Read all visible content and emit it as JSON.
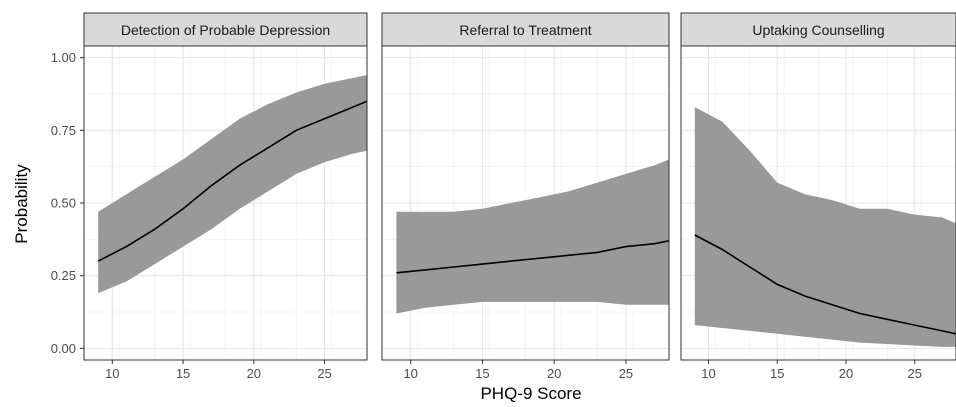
{
  "chart_data": {
    "type": "area",
    "layout": "facets",
    "xlabel": "PHQ-9 Score",
    "ylabel": "Probability",
    "xlim": [
      8,
      28
    ],
    "ylim": [
      -0.04,
      1.04
    ],
    "xticks": [
      10,
      15,
      20,
      25
    ],
    "yticks": [
      0.0,
      0.25,
      0.5,
      0.75,
      1.0
    ],
    "ytick_labels": [
      "0.00",
      "0.25",
      "0.50",
      "0.75",
      "1.00"
    ],
    "grid": true,
    "line_color": "#000000",
    "ribbon_color": "#999999",
    "strip_fill": "#d9d9d9",
    "panels": [
      {
        "title": "Detection of Probable Depression",
        "x": [
          9,
          11,
          13,
          15,
          17,
          19,
          21,
          23,
          25,
          27,
          28
        ],
        "y": [
          0.3,
          0.35,
          0.41,
          0.48,
          0.56,
          0.63,
          0.69,
          0.75,
          0.79,
          0.83,
          0.85
        ],
        "lower": [
          0.19,
          0.23,
          0.29,
          0.35,
          0.41,
          0.48,
          0.54,
          0.6,
          0.64,
          0.67,
          0.68
        ],
        "upper": [
          0.47,
          0.53,
          0.59,
          0.65,
          0.72,
          0.79,
          0.84,
          0.88,
          0.91,
          0.93,
          0.94
        ]
      },
      {
        "title": "Referral to Treatment",
        "x": [
          9,
          11,
          13,
          15,
          17,
          19,
          21,
          23,
          25,
          27,
          28
        ],
        "y": [
          0.26,
          0.27,
          0.28,
          0.29,
          0.3,
          0.31,
          0.32,
          0.33,
          0.35,
          0.36,
          0.37
        ],
        "lower": [
          0.12,
          0.14,
          0.15,
          0.16,
          0.16,
          0.16,
          0.16,
          0.16,
          0.15,
          0.15,
          0.15
        ],
        "upper": [
          0.47,
          0.47,
          0.47,
          0.48,
          0.5,
          0.52,
          0.54,
          0.57,
          0.6,
          0.63,
          0.65
        ]
      },
      {
        "title": "Uptaking Counselling",
        "x": [
          9,
          11,
          13,
          15,
          17,
          19,
          21,
          23,
          25,
          27,
          28
        ],
        "y": [
          0.39,
          0.34,
          0.28,
          0.22,
          0.18,
          0.15,
          0.12,
          0.1,
          0.08,
          0.06,
          0.05
        ],
        "lower": [
          0.08,
          0.07,
          0.06,
          0.05,
          0.04,
          0.03,
          0.02,
          0.015,
          0.01,
          0.005,
          0.005
        ],
        "upper": [
          0.83,
          0.78,
          0.68,
          0.57,
          0.53,
          0.51,
          0.48,
          0.48,
          0.46,
          0.45,
          0.43
        ]
      }
    ]
  }
}
